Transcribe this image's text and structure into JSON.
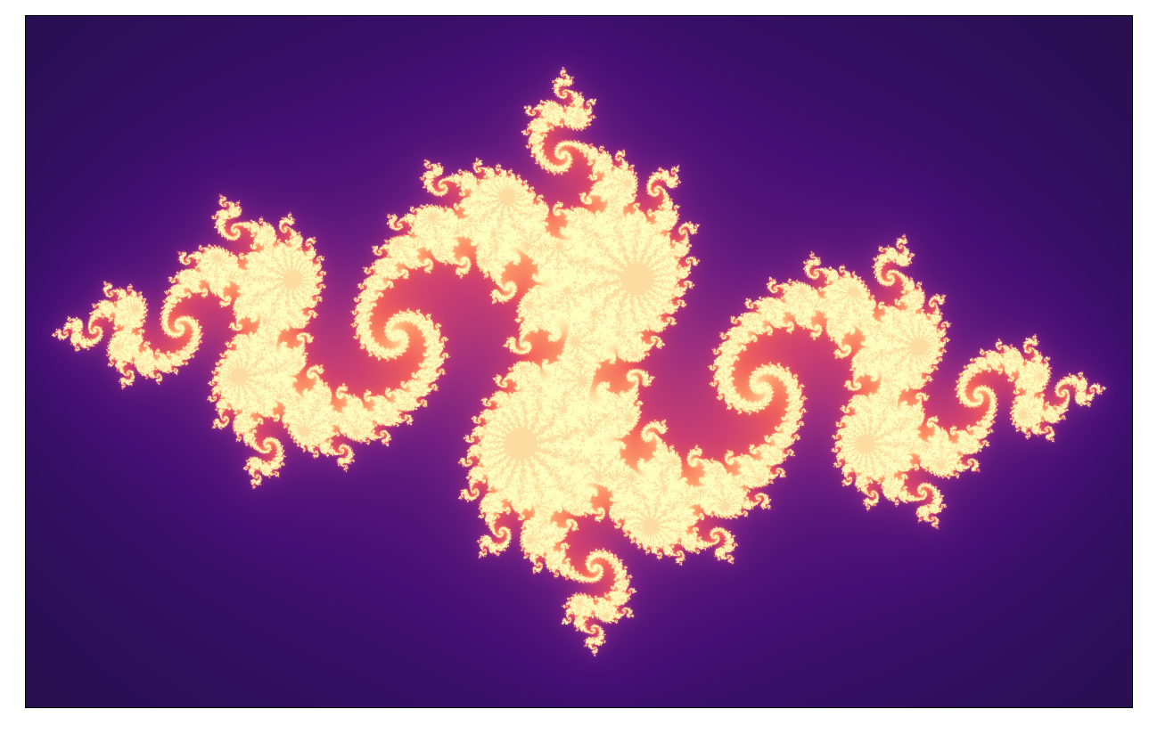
{
  "figure": {
    "kind": "julia-set-render",
    "colormap": "magma",
    "colors": {
      "page_background": "#ffffff",
      "outer_background": "#000000",
      "outer_halo": "#18123a",
      "mid_halo": "#3a0f6e",
      "inner_glow": "#7a1f8a",
      "set_edge": "#e04f6a",
      "set_core": "#fcd9a0"
    },
    "set": {
      "re_range": [
        -1.6,
        1.6
      ],
      "im_range": [
        -1.0,
        1.0
      ],
      "parameter_c": {
        "re": -0.8,
        "im": 0.156
      },
      "max_iterations": 220
    }
  }
}
